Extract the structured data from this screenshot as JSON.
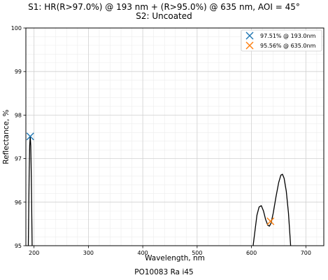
{
  "chart_data": {
    "type": "line",
    "title_lines": [
      "S1: HR(R>97.0%) @ 193 nm + (R>95.0%) @ 635 nm, AOI = 45°",
      "S2: Uncoated"
    ],
    "xlabel": "Wavelength, nm",
    "ylabel": "Reflectance, %",
    "xlim": [
      185,
      733
    ],
    "ylim": [
      95,
      100
    ],
    "x_ticks": [
      200,
      300,
      400,
      500,
      600,
      700
    ],
    "y_ticks": [
      95,
      96,
      97,
      98,
      99,
      100
    ],
    "grid": true,
    "minor_grid": true,
    "legend_position": "top-right",
    "series": [
      {
        "color": "#000000",
        "segments": [
          [
            [
              189.5,
              95.0
            ],
            [
              191,
              96.6
            ],
            [
              192,
              97.3
            ],
            [
              193,
              97.51
            ],
            [
              194,
              97.3
            ],
            [
              195,
              96.6
            ],
            [
              196.5,
              95.0
            ]
          ],
          [
            [
              603,
              95.0
            ],
            [
              606,
              95.3
            ],
            [
              610,
              95.7
            ],
            [
              614,
              95.89
            ],
            [
              618,
              95.92
            ],
            [
              622,
              95.8
            ],
            [
              626,
              95.6
            ],
            [
              630,
              95.47
            ],
            [
              633,
              95.45
            ],
            [
              636,
              95.52
            ],
            [
              640,
              95.75
            ],
            [
              645,
              96.12
            ],
            [
              650,
              96.45
            ],
            [
              654,
              96.62
            ],
            [
              657,
              96.64
            ],
            [
              660,
              96.55
            ],
            [
              664,
              96.25
            ],
            [
              668,
              95.75
            ],
            [
              672,
              95.0
            ]
          ]
        ]
      }
    ],
    "markers": [
      {
        "x": 193.0,
        "y": 97.51,
        "label": "97.51% @ 193.0nm",
        "color": "#1f77b4"
      },
      {
        "x": 635.0,
        "y": 95.56,
        "label": "95.56% @ 635.0nm",
        "color": "#ff7f0e"
      }
    ]
  },
  "footer": "PO10083 Ra i45"
}
